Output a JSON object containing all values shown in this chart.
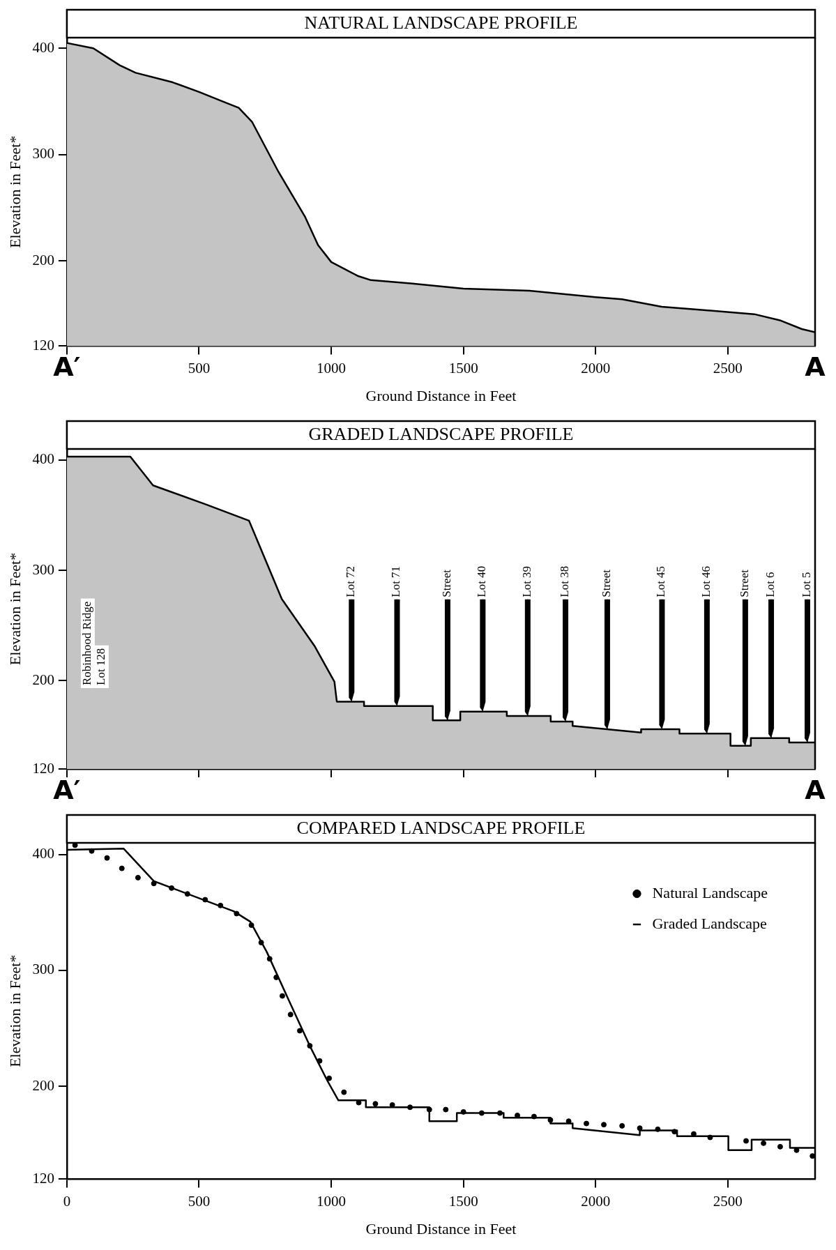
{
  "chart_data": [
    {
      "type": "area",
      "title": "NATURAL LANDSCAPE PROFILE",
      "xlabel": "Ground Distance in Feet",
      "ylabel": "Elevation in Feet*",
      "color": "#c4c4c4",
      "x": [
        0,
        100,
        200,
        260,
        400,
        500,
        600,
        650,
        700,
        800,
        900,
        950,
        1000,
        1100,
        1150,
        1300,
        1500,
        1750,
        2000,
        2100,
        2250,
        2400,
        2600,
        2700,
        2780,
        2830
      ],
      "values": [
        405,
        400,
        384,
        377,
        368,
        359,
        349,
        344,
        331,
        284,
        242,
        215,
        199,
        186,
        182,
        179,
        174,
        172,
        166,
        164,
        157,
        154,
        150,
        144,
        136,
        133
      ],
      "xlim": [
        0,
        2830
      ],
      "xticks": [
        {
          "value": 0,
          "label": null
        },
        500,
        1000,
        1500,
        2000,
        2500
      ],
      "ylim": [
        120,
        410
      ],
      "yticks": [
        120,
        200,
        300,
        400
      ],
      "annotations": [
        "A′",
        "A"
      ]
    },
    {
      "type": "area",
      "title": "GRADED LANDSCAPE PROFILE",
      "ylabel": "Elevation in Feet*",
      "color": "#c4c4c4",
      "tick_labels": "y",
      "x": [
        0,
        240,
        326,
        523,
        689,
        813,
        938,
        1012,
        1021,
        1124,
        1124,
        1384,
        1384,
        1488,
        1488,
        1664,
        1664,
        1830,
        1830,
        1913,
        1913,
        2172,
        2172,
        2317,
        2317,
        2510,
        2510,
        2587,
        2587,
        2732,
        2732,
        2830
      ],
      "values": [
        403,
        403,
        377,
        360,
        345,
        274,
        231,
        199,
        181,
        181,
        177,
        177,
        164,
        164,
        172,
        172,
        168,
        168,
        163,
        163,
        159,
        153,
        156,
        156,
        152,
        152,
        141,
        141,
        148,
        148,
        144,
        144
      ],
      "xlim": [
        0,
        2830
      ],
      "xticks": [
        0,
        500,
        1000,
        1500,
        2000,
        2500
      ],
      "ylim": [
        120,
        410
      ],
      "yticks": [
        120,
        200,
        300,
        400
      ],
      "annotations": [
        "A′",
        "A",
        "Robinhood Ridge",
        "Lot 128",
        {
          "text": "Lot 72",
          "x": 1077,
          "y": 181
        },
        {
          "text": "Lot 71",
          "x": 1249,
          "y": 177
        },
        {
          "text": "Street",
          "x": 1440,
          "y": 164
        },
        {
          "text": "Lot 40",
          "x": 1573,
          "y": 172
        },
        {
          "text": "Lot 39",
          "x": 1743,
          "y": 168
        },
        {
          "text": "Lot 38",
          "x": 1886,
          "y": 163
        },
        {
          "text": "Street",
          "x": 2044,
          "y": 156
        },
        {
          "text": "Lot 45",
          "x": 2251,
          "y": 156
        },
        {
          "text": "Lot 46",
          "x": 2421,
          "y": 152
        },
        {
          "text": "Street",
          "x": 2566,
          "y": 141
        },
        {
          "text": "Lot 6",
          "x": 2664,
          "y": 148
        },
        {
          "text": "Lot 5",
          "x": 2801,
          "y": 144
        }
      ]
    },
    {
      "type": "line",
      "title": "COMPARED LANDSCAPE PROFILE",
      "xlabel": "Ground Distance in Feet",
      "ylabel": "Elevation in Feet*",
      "legend": "top right",
      "xlim": [
        0,
        2830
      ],
      "xticks": [
        0,
        500,
        1000,
        1500,
        2000,
        2500
      ],
      "ylim": [
        120,
        410
      ],
      "yticks": [
        120,
        200,
        300,
        400
      ],
      "series": [
        {
          "name": "Natural Landscape",
          "type": "scatter",
          "marker": "circle",
          "color": "#000000",
          "x": [
            31,
            94,
            152,
            208,
            269,
            329,
            396,
            456,
            523,
            581,
            642,
            698,
            735,
            767,
            792,
            815,
            846,
            881,
            919,
            956,
            992,
            1048,
            1104,
            1167,
            1231,
            1298,
            1371,
            1433,
            1500,
            1569,
            1638,
            1704,
            1767,
            1829,
            1898,
            1965,
            2031,
            2100,
            2167,
            2235,
            2298,
            2371,
            2433,
            2569,
            2635,
            2698,
            2760,
            2820
          ],
          "values": [
            408,
            403,
            397,
            388,
            380,
            375,
            371,
            366,
            361,
            356,
            349,
            339,
            324,
            310,
            294,
            278,
            262,
            248,
            235,
            222,
            207,
            195,
            186,
            185,
            184,
            182,
            180,
            180,
            178,
            177,
            177,
            175,
            174,
            171,
            170,
            168,
            167,
            166,
            164,
            163,
            161,
            159,
            156,
            153,
            151,
            148,
            145,
            140
          ]
        },
        {
          "name": "Graded Landscape",
          "type": "line",
          "color": "#000000",
          "x": [
            0,
            215,
            329,
            631,
            694,
            756,
            840,
            923,
            985,
            1027,
            1131,
            1131,
            1371,
            1371,
            1475,
            1475,
            1652,
            1652,
            1829,
            1829,
            1913,
            1913,
            2167,
            2167,
            2308,
            2308,
            2502,
            2502,
            2590,
            2590,
            2735,
            2735,
            2830
          ],
          "values": [
            404,
            405,
            377,
            351,
            342,
            316,
            274,
            233,
            205,
            188,
            188,
            182,
            182,
            170,
            170,
            177,
            177,
            173,
            173,
            168,
            168,
            164,
            158,
            162,
            162,
            157,
            157,
            145,
            145,
            154,
            154,
            147,
            147
          ]
        }
      ]
    }
  ]
}
